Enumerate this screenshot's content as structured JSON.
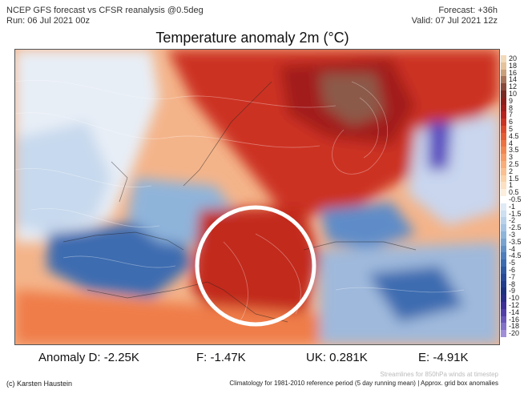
{
  "header": {
    "model_line": "NCEP GFS forecast vs CFSR reanalysis @0.5deg",
    "run_line": "Run: 06 Jul 2021 00z",
    "forecast_line": "Forecast: +36h",
    "valid_line": "Valid: 07 Jul 2021 12z"
  },
  "title": "Temperature anomaly 2m (°C)",
  "legend": {
    "labels": [
      "20",
      "18",
      "16",
      "14",
      "12",
      "10",
      "9",
      "8",
      "7",
      "6",
      "5",
      "4.5",
      "4",
      "3.5",
      "3",
      "2.5",
      "2",
      "1.5",
      "1",
      "0.5",
      "-0.5",
      "-1",
      "-1.5",
      "-2",
      "-2.5",
      "-3",
      "-3.5",
      "-4",
      "-4.5",
      "-5",
      "-6",
      "-7",
      "-8",
      "-9",
      "-10",
      "-12",
      "-14",
      "-16",
      "-18",
      "-20"
    ],
    "colors": [
      "#f2d9b8",
      "#e6c29a",
      "#c9a07a",
      "#a87358",
      "#8c4a3a",
      "#7a2a22",
      "#8f1e1a",
      "#a31d1a",
      "#b8241d",
      "#cc3322",
      "#dd4a2b",
      "#e55c33",
      "#ee7240",
      "#f3864f",
      "#f79a63",
      "#f9ad78",
      "#fbc08f",
      "#fcd2a8",
      "#fde0c2",
      "#fdeedc",
      "#ffffff",
      "#dfeaf6",
      "#cddff0",
      "#b9d2ea",
      "#a5c4e3",
      "#8fb4da",
      "#79a2d0",
      "#6390c5",
      "#4e7ebb",
      "#3c6cb0",
      "#2f5aa4",
      "#264a98",
      "#1f3d8c",
      "#1c3280",
      "#2a2c8a",
      "#3d2f98",
      "#5240a8",
      "#6a56b8",
      "#8370c8",
      "#a08fd8"
    ]
  },
  "stats": {
    "germany": "Anomaly D: -2.25K",
    "france": "F: -1.47K",
    "uk": "UK: 0.281K",
    "spain": "E: -4.91K"
  },
  "footer": {
    "credit": "(c) Karsten Haustein",
    "climatology": "Climatology for 1981-2010 reference period (5 day running mean) | Approx. grid box anomalies",
    "streamlines": "Streamlines for 850hPa winds at timestep"
  },
  "map_colors": {
    "warm": "#d9452b",
    "hot": "#a8261e",
    "extreme": "#8c5a4a",
    "mild": "#f5a06a",
    "cool": "#a5c4e3",
    "cold": "#3c6cb0",
    "very_cold": "#5a4cc0",
    "highlight_circle": "#ffffff"
  }
}
